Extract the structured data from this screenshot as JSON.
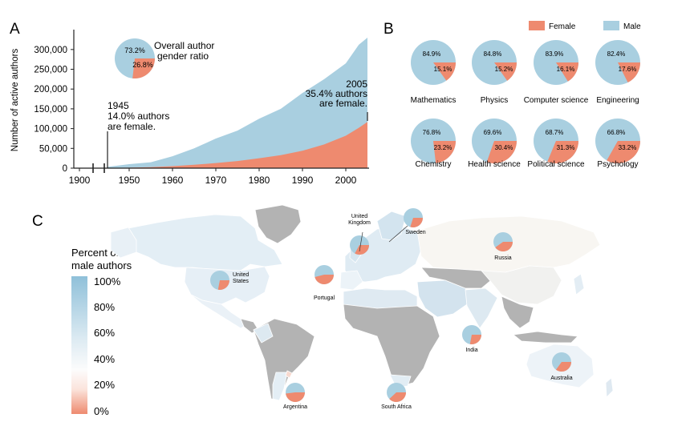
{
  "colors": {
    "female": "#ee8a6f",
    "male": "#a9cfe0",
    "land_gray": "#b3b3b3",
    "border": "#ffffff"
  },
  "chart_data": [
    {
      "panel_label": "A",
      "type": "area",
      "ylabel": "Number of active authors",
      "x": [
        1945,
        1950,
        1955,
        1960,
        1965,
        1970,
        1975,
        1980,
        1985,
        1990,
        1995,
        2000,
        2003,
        2005
      ],
      "series": [
        {
          "values": [
            3300,
            10000,
            15000,
            30000,
            50000,
            75000,
            95000,
            125000,
            150000,
            190000,
            225000,
            265000,
            312000,
            330000
          ]
        },
        {
          "values": [
            470,
            1200,
            2500,
            5000,
            8500,
            13000,
            18000,
            25000,
            33000,
            44000,
            60000,
            82000,
            102000,
            117000
          ]
        }
      ],
      "xlim": [
        1895,
        2005
      ],
      "ylim": [
        0,
        330000
      ],
      "x_ticks": [
        "1900",
        "1950",
        "1960",
        "1970",
        "1980",
        "1990",
        "2000"
      ],
      "y_ticks": [
        "0",
        "50,000",
        "100,000",
        "150,000",
        "200,000",
        "250,000",
        "300,000"
      ],
      "annotations": [
        {
          "lines": [
            "1945",
            "14.0% authors",
            "are female."
          ]
        },
        {
          "lines": [
            "2005",
            "35.4% authors",
            "are female."
          ]
        }
      ],
      "inset_pie": {
        "caption": [
          "Overall author",
          "gender ratio"
        ],
        "male_label": "73.2%",
        "female_label": "26.8%",
        "female": 26.8
      }
    },
    {
      "panel_label": "B",
      "type": "pie",
      "legend": [
        "Female",
        "Male"
      ],
      "pies": [
        {
          "category": "Mathematics",
          "female": 15.1,
          "male_label": "84.9%",
          "female_label": "15.1%"
        },
        {
          "category": "Physics",
          "female": 15.2,
          "male_label": "84.8%",
          "female_label": "15.2%"
        },
        {
          "category": "Computer science",
          "female": 16.1,
          "male_label": "83.9%",
          "female_label": "16.1%"
        },
        {
          "category": "Engineering",
          "female": 17.6,
          "male_label": "82.4%",
          "female_label": "17.6%"
        },
        {
          "category": "Chemistry",
          "female": 23.2,
          "male_label": "76.8%",
          "female_label": "23.2%"
        },
        {
          "category": "Health science",
          "female": 30.4,
          "male_label": "69.6%",
          "female_label": "30.4%"
        },
        {
          "category": "Political science",
          "female": 31.3,
          "male_label": "68.7%",
          "female_label": "31.3%"
        },
        {
          "category": "Psychology",
          "female": 33.2,
          "male_label": "66.8%",
          "female_label": "33.2%"
        }
      ]
    },
    {
      "panel_label": "C",
      "type": "heatmap",
      "colorbar_title": [
        "Percent of",
        "male authors"
      ],
      "colorbar_ticks": [
        "100%",
        "80%",
        "60%",
        "40%",
        "20%",
        "0%"
      ],
      "country_pies": [
        {
          "name": [
            "United",
            "States"
          ],
          "female": 28
        },
        {
          "name": [
            "Portugal"
          ],
          "female": 46
        },
        {
          "name": [
            "United",
            "Kingdom"
          ],
          "female": 33
        },
        {
          "name": [
            "Sweden"
          ],
          "female": 30
        },
        {
          "name": [
            "Russia"
          ],
          "female": 40
        },
        {
          "name": [
            "India"
          ],
          "female": 28
        },
        {
          "name": [
            "Australia"
          ],
          "female": 35
        },
        {
          "name": [
            "Argentina"
          ],
          "female": 48
        },
        {
          "name": [
            "South Africa"
          ],
          "female": 38
        }
      ]
    }
  ]
}
